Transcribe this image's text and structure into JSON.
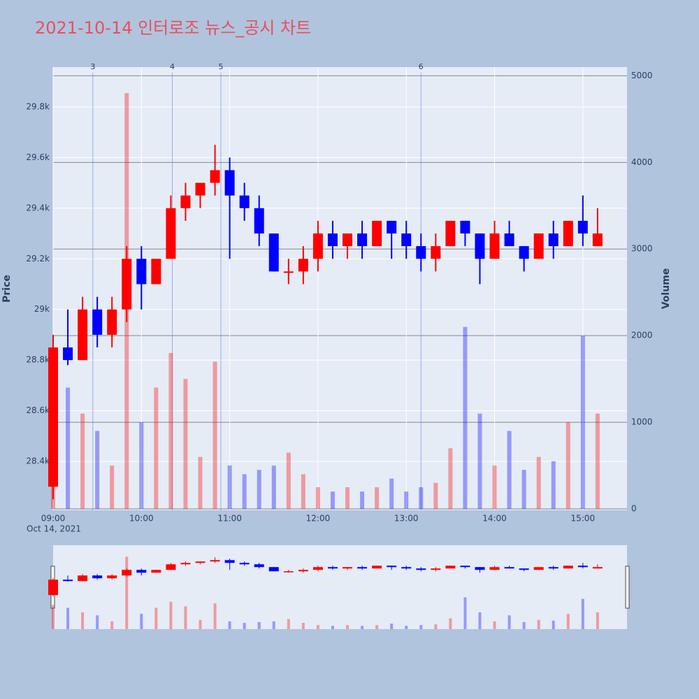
{
  "chart_data": {
    "type": "candlestick",
    "title": "2021-10-14 인터로조 뉴스_공시 차트",
    "x": [
      "09:00",
      "09:10",
      "09:20",
      "09:30",
      "09:40",
      "09:50",
      "10:00",
      "10:10",
      "10:20",
      "10:30",
      "10:40",
      "10:50",
      "11:00",
      "11:10",
      "11:20",
      "11:30",
      "11:40",
      "11:50",
      "12:00",
      "12:10",
      "12:20",
      "12:30",
      "12:40",
      "12:50",
      "13:00",
      "13:10",
      "13:20",
      "13:30",
      "13:40",
      "13:50",
      "14:00",
      "14:10",
      "14:20",
      "14:30",
      "14:40",
      "14:50",
      "15:00",
      "15:10"
    ],
    "open": [
      28300,
      28850,
      28800,
      29000,
      28900,
      29000,
      29200,
      29100,
      29200,
      29400,
      29450,
      29500,
      29550,
      29450,
      29400,
      29300,
      29150,
      29150,
      29200,
      29300,
      29250,
      29300,
      29250,
      29350,
      29300,
      29250,
      29200,
      29250,
      29350,
      29300,
      29200,
      29300,
      29250,
      29200,
      29300,
      29250,
      29350,
      29250
    ],
    "high": [
      28900,
      29000,
      29050,
      29050,
      29050,
      29250,
      29250,
      29200,
      29450,
      29500,
      29500,
      29650,
      29600,
      29500,
      29450,
      29300,
      29200,
      29250,
      29350,
      29350,
      29300,
      29350,
      29350,
      29350,
      29350,
      29300,
      29300,
      29350,
      29350,
      29300,
      29350,
      29350,
      29250,
      29300,
      29350,
      29350,
      29450,
      29400
    ],
    "low": [
      28250,
      28780,
      28800,
      28850,
      28850,
      28950,
      29000,
      29100,
      29200,
      29350,
      29400,
      29450,
      29200,
      29350,
      29250,
      29150,
      29100,
      29100,
      29150,
      29200,
      29200,
      29200,
      29250,
      29200,
      29200,
      29150,
      29150,
      29250,
      29250,
      29100,
      29200,
      29250,
      29150,
      29200,
      29200,
      29250,
      29250,
      29250
    ],
    "close": [
      28850,
      28800,
      29000,
      28900,
      29000,
      29200,
      29100,
      29200,
      29400,
      29450,
      29500,
      29550,
      29450,
      29400,
      29300,
      29150,
      29150,
      29200,
      29300,
      29250,
      29300,
      29250,
      29350,
      29300,
      29250,
      29200,
      29250,
      29350,
      29300,
      29200,
      29300,
      29250,
      29200,
      29300,
      29250,
      29350,
      29300,
      29300
    ],
    "up_color": "#ff0000",
    "down_color": "#0000ff",
    "volume": {
      "name": "Volume",
      "axis": "y2",
      "values": [
        1600,
        1400,
        1100,
        900,
        500,
        4800,
        1000,
        1400,
        1800,
        1500,
        600,
        1700,
        500,
        400,
        450,
        500,
        650,
        400,
        250,
        200,
        250,
        200,
        250,
        350,
        200,
        250,
        300,
        700,
        2100,
        1100,
        500,
        900,
        450,
        600,
        550,
        1000,
        2000,
        1100
      ]
    },
    "xlim": [
      "09:00",
      "15:30"
    ],
    "xticks": [
      "09:00",
      "10:00",
      "11:00",
      "12:00",
      "13:00",
      "14:00",
      "15:00"
    ],
    "date_label": "Oct 14, 2021",
    "ylabel": "Price",
    "y2label": "Volume",
    "ylim": [
      28207,
      29957
    ],
    "yticks": [
      {
        "value": 28400,
        "label": "28.4k"
      },
      {
        "value": 28600,
        "label": "28.6k"
      },
      {
        "value": 28800,
        "label": "28.8k"
      },
      {
        "value": 29000,
        "label": "29k"
      },
      {
        "value": 29200,
        "label": "29.2k"
      },
      {
        "value": 29400,
        "label": "29.4k"
      },
      {
        "value": 29600,
        "label": "29.6k"
      },
      {
        "value": 29800,
        "label": "29.8k"
      }
    ],
    "y2lim": [
      -16,
      5100
    ],
    "y2ticks": [
      0,
      1000,
      2000,
      3000,
      4000,
      5000
    ],
    "annotations": [
      {
        "x": "09:27",
        "label": "3"
      },
      {
        "x": "10:21",
        "label": "4"
      },
      {
        "x": "10:54",
        "label": "5"
      },
      {
        "x": "13:10",
        "label": "6"
      }
    ],
    "grid": true
  }
}
